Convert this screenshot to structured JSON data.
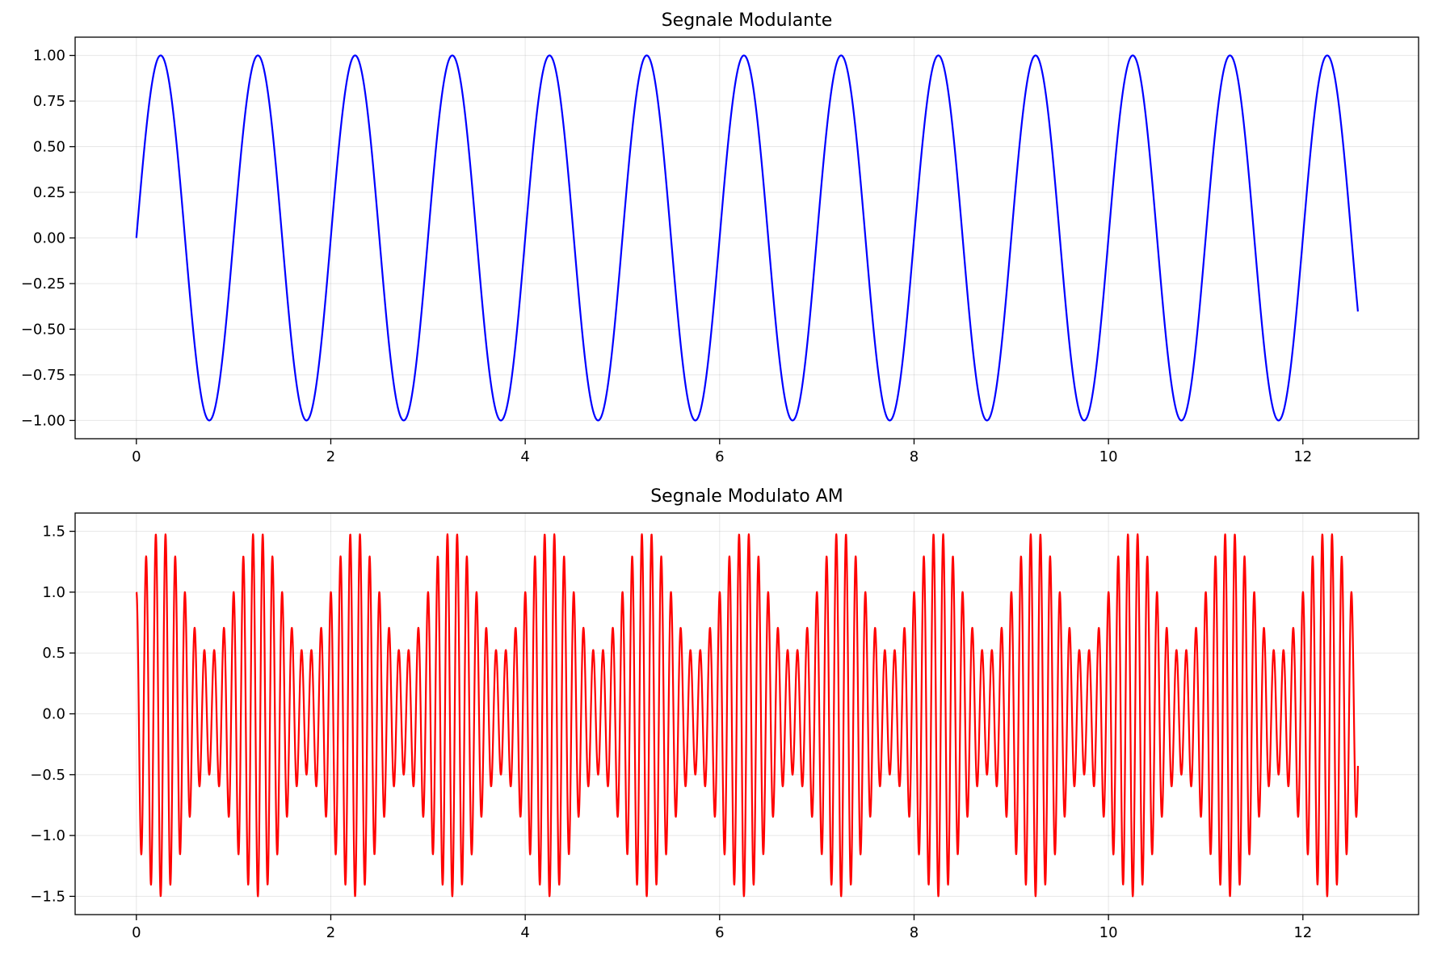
{
  "chart_data": [
    {
      "type": "line",
      "title": "Segnale Modulante",
      "xlabel": "",
      "ylabel": "",
      "xlim": [
        -0.63,
        13.19
      ],
      "ylim": [
        -1.1,
        1.1
      ],
      "xticks": [
        0,
        2,
        4,
        6,
        8,
        10,
        12
      ],
      "xtick_labels": [
        "0",
        "2",
        "4",
        "6",
        "8",
        "10",
        "12"
      ],
      "yticks": [
        1.0,
        0.75,
        0.5,
        0.25,
        0.0,
        -0.25,
        -0.5,
        -0.75,
        -1.0
      ],
      "ytick_labels": [
        "1.00",
        "0.75",
        "0.50",
        "0.25",
        "0.00",
        "−0.25",
        "−0.50",
        "−0.75",
        "−1.00"
      ],
      "grid": true,
      "series": [
        {
          "color": "#0000ff",
          "function": "sin(2*pi*t)",
          "x_range": [
            0,
            12.566
          ],
          "samples": 2000
        }
      ]
    },
    {
      "type": "line",
      "title": "Segnale Modulato AM",
      "xlabel": "",
      "ylabel": "",
      "xlim": [
        -0.63,
        13.19
      ],
      "ylim": [
        -1.65,
        1.65
      ],
      "xticks": [
        0,
        2,
        4,
        6,
        8,
        10,
        12
      ],
      "xtick_labels": [
        "0",
        "2",
        "4",
        "6",
        "8",
        "10",
        "12"
      ],
      "yticks": [
        1.5,
        1.0,
        0.5,
        0.0,
        -0.5,
        -1.0,
        -1.5
      ],
      "ytick_labels": [
        "1.5",
        "1.0",
        "0.5",
        "0.0",
        "−0.5",
        "−1.0",
        "−1.5"
      ],
      "grid": true,
      "series": [
        {
          "color": "#ff0000",
          "function": "(1 + 0.5*sin(2*pi*t)) * cos(2*pi*10*t)",
          "modulation_index": 0.5,
          "carrier_frequency": 10,
          "modulating_frequency": 1,
          "x_range": [
            0,
            12.566
          ],
          "samples": 6000
        }
      ]
    }
  ]
}
